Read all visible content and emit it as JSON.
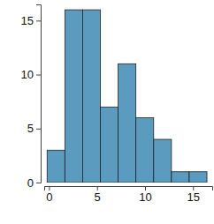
{
  "chart_data": {
    "type": "histogram",
    "bins": [
      -0.2,
      1.65,
      3.5,
      5.35,
      7.2,
      9.05,
      10.9,
      12.75,
      14.6,
      16.45
    ],
    "values": [
      3,
      16,
      16,
      7,
      11,
      6,
      4,
      1,
      1
    ],
    "color": "#5a9bbf",
    "xlim": [
      -0.5,
      17
    ],
    "xticks": [
      0,
      5,
      10,
      15
    ],
    "ylim": [
      0,
      16.5
    ],
    "yticks": [
      0,
      5,
      10,
      15
    ]
  }
}
